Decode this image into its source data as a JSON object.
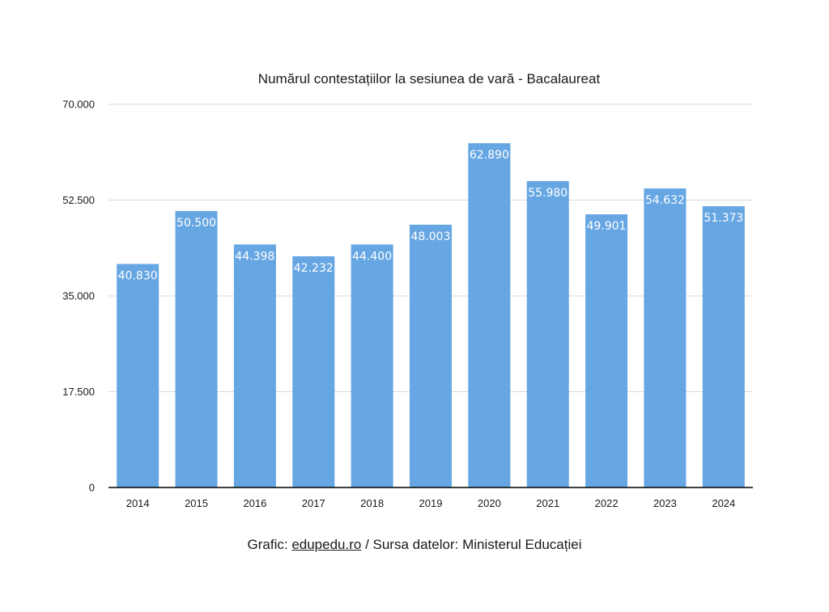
{
  "chart_data": {
    "type": "bar",
    "title": "Numărul contestațiilor la sesiunea de vară - Bacalaureat",
    "categories": [
      "2014",
      "2015",
      "2016",
      "2017",
      "2018",
      "2019",
      "2020",
      "2021",
      "2022",
      "2023",
      "2024"
    ],
    "values": [
      40830,
      50500,
      44398,
      42232,
      44400,
      48003,
      62890,
      55980,
      49901,
      54632,
      51373
    ],
    "value_labels": [
      "40.830",
      "50.500",
      "44.398",
      "42.232",
      "44.400",
      "48.003",
      "62.890",
      "55.980",
      "49.901",
      "54.632",
      "51.373"
    ],
    "y_ticks": [
      0,
      17500,
      35000,
      52500,
      70000
    ],
    "y_tick_labels": [
      "0",
      "17.500",
      "35.000",
      "52.500",
      "70.000"
    ],
    "ylim": [
      0,
      70000
    ],
    "xlabel": "",
    "ylabel": "",
    "grid": true,
    "legend": "none",
    "bar_color": "#66a6e2",
    "grid_color": "#d9d9d9",
    "axis_color": "#000000"
  },
  "footer": {
    "prefix": "Grafic: ",
    "link_text": "edupedu.ro",
    "suffix": " / Sursa datelor: Ministerul Educației"
  }
}
